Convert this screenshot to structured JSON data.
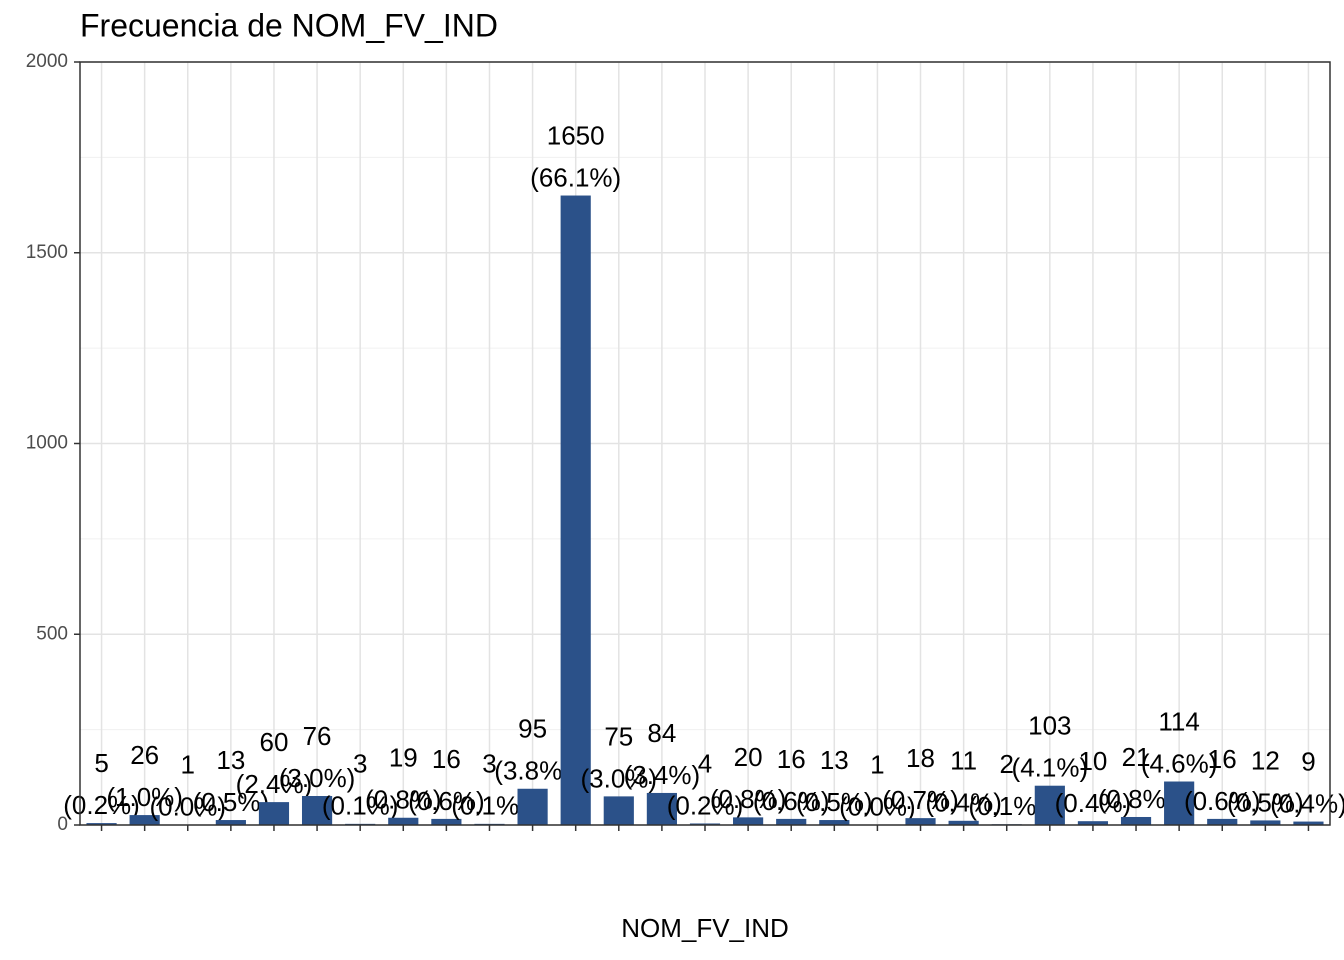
{
  "chart_data": {
    "type": "bar",
    "title": "Frecuencia de NOM_FV_IND",
    "x_label": "NOM_FV_IND",
    "categories": [
      null,
      null,
      null,
      null,
      null,
      null,
      null,
      null,
      null,
      null,
      null,
      null,
      null,
      null,
      null,
      null,
      null,
      null,
      null,
      null,
      null,
      null,
      null,
      null,
      null,
      null,
      null,
      null,
      null
    ],
    "values": [
      5,
      26,
      1,
      13,
      60,
      76,
      3,
      19,
      16,
      3,
      95,
      1650,
      75,
      84,
      4,
      20,
      16,
      13,
      1,
      18,
      11,
      2,
      103,
      10,
      21,
      114,
      16,
      12,
      9
    ],
    "percent_labels": [
      "(0.2%)",
      "(1.0%)",
      "(0.0%)",
      "(0.5%)",
      "(2.4%)",
      "(3.0%)",
      "(0.1%)",
      "(0.8%)",
      "(0.6%)",
      "(0.1%)",
      "(3.8%)",
      "(66.1%)",
      "(3.0%)",
      "(3.4%)",
      "(0.2%)",
      "(0.8%)",
      "(0.6%)",
      "(0.5%)",
      "(0.0%)",
      "(0.7%)",
      "(0.4%)",
      "(0.1%)",
      "(4.1%)",
      "(0.4%)",
      "(0.8%)",
      "(4.6%)",
      "(0.6%)",
      "(0.5%)",
      "(0.4%)"
    ],
    "color": "#2b5189",
    "ylim": [
      0,
      2000
    ],
    "yticks": [
      0,
      500,
      1000,
      1500,
      2000
    ],
    "grid": true
  }
}
